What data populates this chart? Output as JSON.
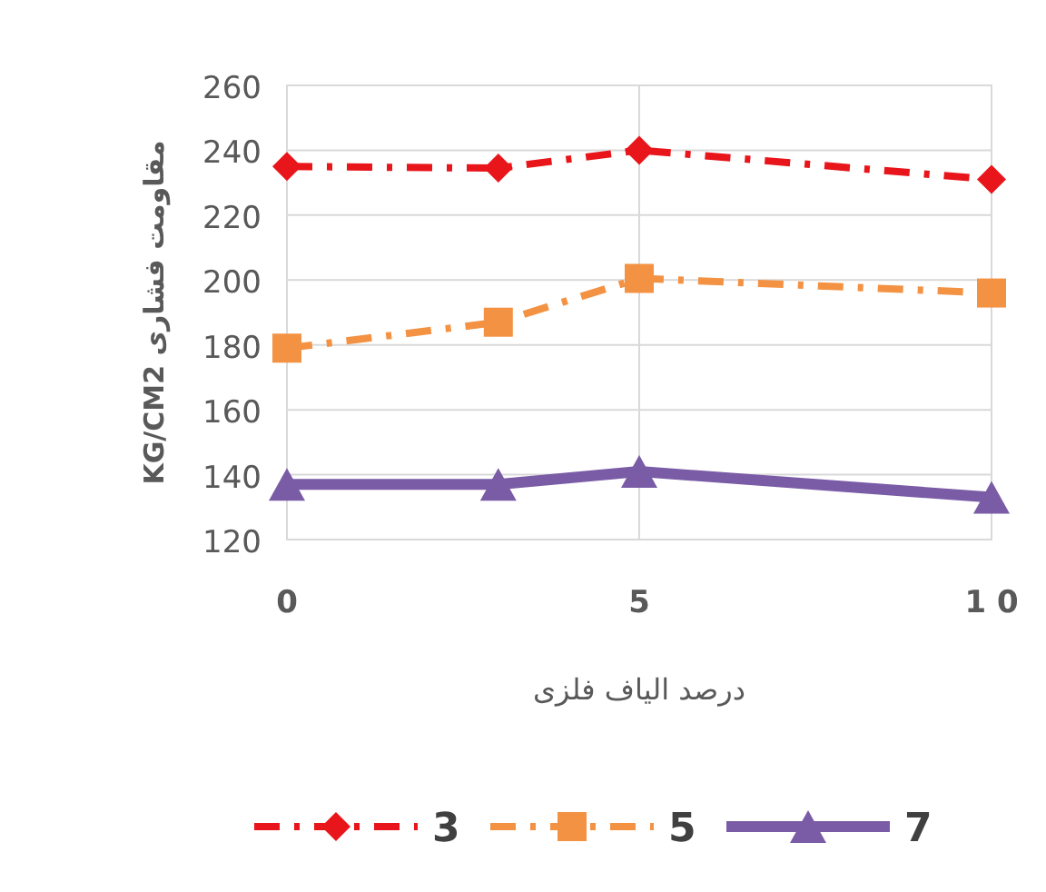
{
  "chart_data": {
    "type": "line",
    "xlabel": "درصد الیاف فلزی",
    "ylabel": "مقاومت فشاری KG/CM2",
    "x": [
      0,
      3,
      5,
      10
    ],
    "xlim": [
      0,
      10
    ],
    "xticks": [
      0,
      5,
      {
        "value": 10,
        "label": "1 0"
      }
    ],
    "ylim": [
      120,
      260
    ],
    "yticks": [
      120,
      140,
      160,
      180,
      200,
      220,
      240,
      260
    ],
    "grid": true,
    "legend": "bottom",
    "series": [
      {
        "name": "3",
        "color": "#e8151b",
        "values": [
          235,
          234.5,
          240,
          231
        ],
        "marker": "diamond",
        "line_style": "dashdot"
      },
      {
        "name": "5",
        "color": "#f39243",
        "values": [
          179,
          187,
          200.5,
          196
        ],
        "marker": "square",
        "line_style": "dashdot"
      },
      {
        "name": "7",
        "color": "#7a5ca6",
        "values": [
          137,
          137,
          141,
          133
        ],
        "marker": "triangle",
        "line_style": "solid"
      }
    ]
  }
}
